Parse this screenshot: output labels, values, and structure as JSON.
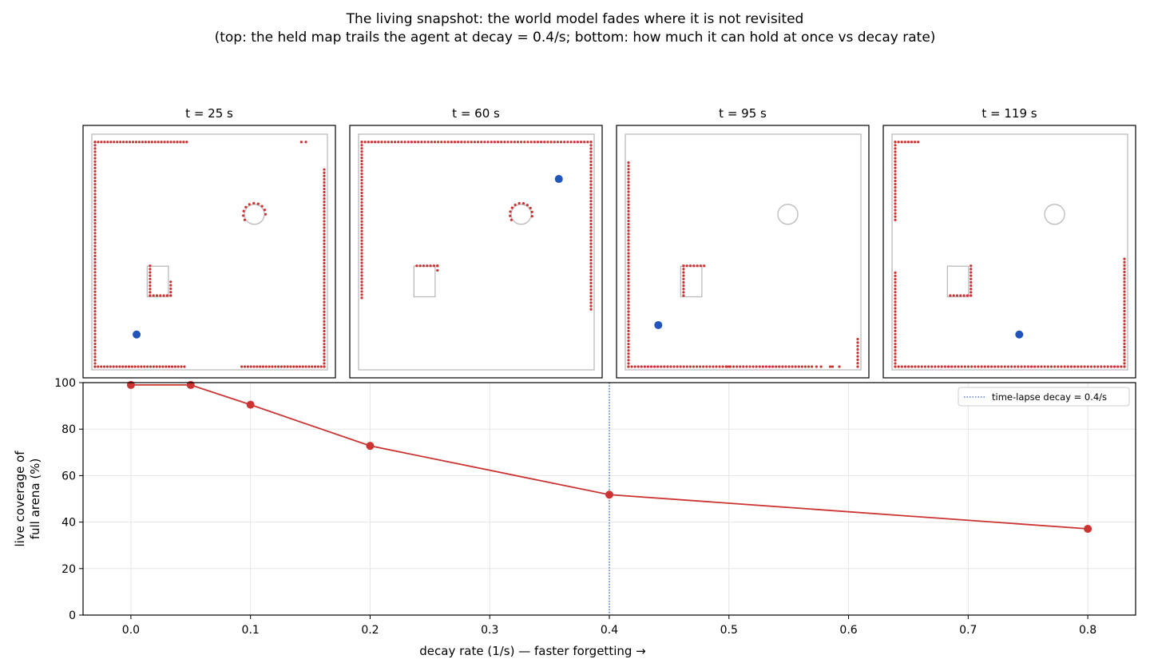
{
  "figure": {
    "title": "The living snapshot: the world model fades where it is not revisited",
    "subtitle": "(top: the held map trails the agent at decay = 0.4/s; bottom: how much it can hold at once vs decay rate)"
  },
  "colors": {
    "points": "#cc3333",
    "agent": "#2255bb",
    "outline": "#bbbbbb",
    "line": "#cc3333",
    "vline": "#3366cc",
    "grid": "#e6e6e6"
  },
  "chart_data": [
    {
      "type": "scatter",
      "title": "t = 25 s",
      "agent": [
        0.19,
        0.15
      ],
      "segments": [
        {
          "from": [
            0.0,
            0.98
          ],
          "to": [
            0.4,
            0.98
          ],
          "n": 30
        },
        {
          "from": [
            0.9,
            0.98
          ],
          "to": [
            0.92,
            0.98
          ],
          "n": 2
        },
        {
          "from": [
            0.0,
            0.0
          ],
          "to": [
            0.0,
            0.98
          ],
          "n": 70
        },
        {
          "from": [
            0.0,
            0.0
          ],
          "to": [
            0.39,
            0.0
          ],
          "n": 30
        },
        {
          "from": [
            0.64,
            0.0
          ],
          "to": [
            1.0,
            0.0
          ],
          "n": 28
        },
        {
          "from": [
            1.0,
            0.0
          ],
          "to": [
            1.0,
            0.86
          ],
          "n": 62
        },
        {
          "from": [
            0.24,
            0.31
          ],
          "to": [
            0.24,
            0.44
          ],
          "n": 10
        },
        {
          "from": [
            0.24,
            0.31
          ],
          "to": [
            0.33,
            0.31
          ],
          "n": 7
        },
        {
          "from": [
            0.33,
            0.31
          ],
          "to": [
            0.33,
            0.37
          ],
          "n": 5
        }
      ],
      "arcs": [
        {
          "center": [
            0.69,
            0.66
          ],
          "r": 0.038,
          "from": 150,
          "to": 360,
          "n": 10
        }
      ]
    },
    {
      "type": "scatter",
      "title": "t = 60 s",
      "agent": [
        0.85,
        0.81
      ],
      "segments": [
        {
          "from": [
            0.0,
            0.98
          ],
          "to": [
            1.0,
            0.98
          ],
          "n": 70
        },
        {
          "from": [
            0.0,
            0.3
          ],
          "to": [
            0.0,
            0.98
          ],
          "n": 50
        },
        {
          "from": [
            1.0,
            0.25
          ],
          "to": [
            1.0,
            0.98
          ],
          "n": 52
        },
        {
          "from": [
            0.24,
            0.44
          ],
          "to": [
            0.33,
            0.44
          ],
          "n": 7
        },
        {
          "from": [
            0.33,
            0.42
          ],
          "to": [
            0.33,
            0.44
          ],
          "n": 2
        }
      ],
      "arcs": [
        {
          "center": [
            0.69,
            0.66
          ],
          "r": 0.038,
          "from": 150,
          "to": 370,
          "n": 11
        }
      ]
    },
    {
      "type": "scatter",
      "title": "t = 95 s",
      "agent": [
        0.14,
        0.19
      ],
      "segments": [
        {
          "from": [
            0.0,
            0.0
          ],
          "to": [
            0.0,
            0.89
          ],
          "n": 64
        },
        {
          "from": [
            0.0,
            0.0
          ],
          "to": [
            0.44,
            0.0
          ],
          "n": 32
        },
        {
          "from": [
            0.43,
            0.0
          ],
          "to": [
            0.8,
            0.0
          ],
          "n": 27
        },
        {
          "from": [
            0.82,
            0.0
          ],
          "to": [
            0.84,
            0.0
          ],
          "n": 2
        },
        {
          "from": [
            0.88,
            0.0
          ],
          "to": [
            0.89,
            0.0
          ],
          "n": 2
        },
        {
          "from": [
            0.92,
            0.0
          ],
          "to": [
            0.92,
            0.0
          ],
          "n": 1
        },
        {
          "from": [
            1.0,
            0.0
          ],
          "to": [
            1.0,
            0.12
          ],
          "n": 9
        },
        {
          "from": [
            0.24,
            0.31
          ],
          "to": [
            0.24,
            0.44
          ],
          "n": 10
        },
        {
          "from": [
            0.24,
            0.44
          ],
          "to": [
            0.33,
            0.44
          ],
          "n": 7
        }
      ],
      "arcs": []
    },
    {
      "type": "scatter",
      "title": "t = 119 s",
      "agent": [
        0.54,
        0.15
      ],
      "segments": [
        {
          "from": [
            0.0,
            0.98
          ],
          "to": [
            0.1,
            0.98
          ],
          "n": 8
        },
        {
          "from": [
            0.0,
            0.64
          ],
          "to": [
            0.0,
            0.98
          ],
          "n": 25
        },
        {
          "from": [
            0.0,
            0.0
          ],
          "to": [
            0.0,
            0.41
          ],
          "n": 30
        },
        {
          "from": [
            0.0,
            0.0
          ],
          "to": [
            1.0,
            0.0
          ],
          "n": 70
        },
        {
          "from": [
            1.0,
            0.0
          ],
          "to": [
            1.0,
            0.47
          ],
          "n": 34
        },
        {
          "from": [
            0.24,
            0.31
          ],
          "to": [
            0.33,
            0.31
          ],
          "n": 7
        },
        {
          "from": [
            0.33,
            0.31
          ],
          "to": [
            0.33,
            0.44
          ],
          "n": 10
        }
      ],
      "arcs": []
    },
    {
      "type": "line",
      "xlabel": "decay rate (1/s)  —  faster forgetting →",
      "ylabel": "live coverage of\nfull arena (%)",
      "x": [
        0.0,
        0.05,
        0.1,
        0.2,
        0.4,
        0.8
      ],
      "y": [
        99.0,
        99.0,
        90.5,
        72.8,
        51.8,
        37.1
      ],
      "xlim": [
        -0.04,
        0.84
      ],
      "ylim": [
        0,
        100
      ],
      "xticks": [
        0.0,
        0.1,
        0.2,
        0.3,
        0.4,
        0.5,
        0.6,
        0.7,
        0.8
      ],
      "xtick_labels": [
        "0.0",
        "0.1",
        "0.2",
        "0.3",
        "0.4",
        "0.5",
        "0.6",
        "0.7",
        "0.8"
      ],
      "yticks": [
        0,
        20,
        40,
        60,
        80,
        100
      ],
      "ytick_labels": [
        "0",
        "20",
        "40",
        "60",
        "80",
        "100"
      ],
      "vline": 0.4,
      "legend": {
        "label": "time-lapse decay = 0.4/s",
        "placement": "top-right"
      },
      "grid": true
    }
  ]
}
